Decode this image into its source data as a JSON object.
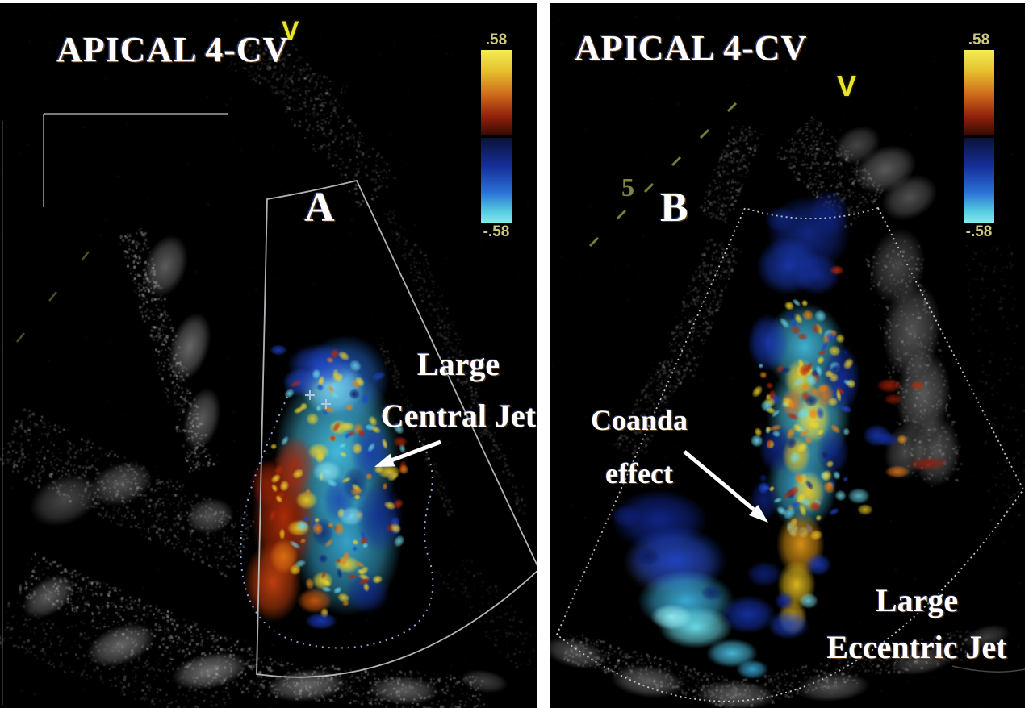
{
  "panels": [
    {
      "panel_label": "A",
      "title": "APICAL 4-CV",
      "orientation_marker": "V",
      "annotations": {
        "jet": {
          "line1": "Large",
          "line2": "Central Jet"
        }
      },
      "colorbar": {
        "max": ".58",
        "min": "-.58"
      }
    },
    {
      "panel_label": "B",
      "title": "APICAL 4-CV",
      "orientation_marker": "V",
      "depth_marker": "5",
      "annotations": {
        "coanda": {
          "line1": "Coanda",
          "line2": "effect"
        },
        "jet": {
          "line1": "Large",
          "line2": "Eccentric Jet"
        }
      },
      "colorbar": {
        "max": ".58",
        "min": "-.58"
      }
    }
  ],
  "colors": {
    "annotation_text": "#ffffff",
    "orientation_marker": "#e9e32c",
    "depth_marker": "#9a9a50",
    "scale_label": "#cfc87e",
    "doppler_positive_top": "#f4ec56",
    "doppler_positive_bottom": "#3a0a04",
    "doppler_negative_top": "#0a1236",
    "doppler_negative_bottom": "#83ecee"
  }
}
